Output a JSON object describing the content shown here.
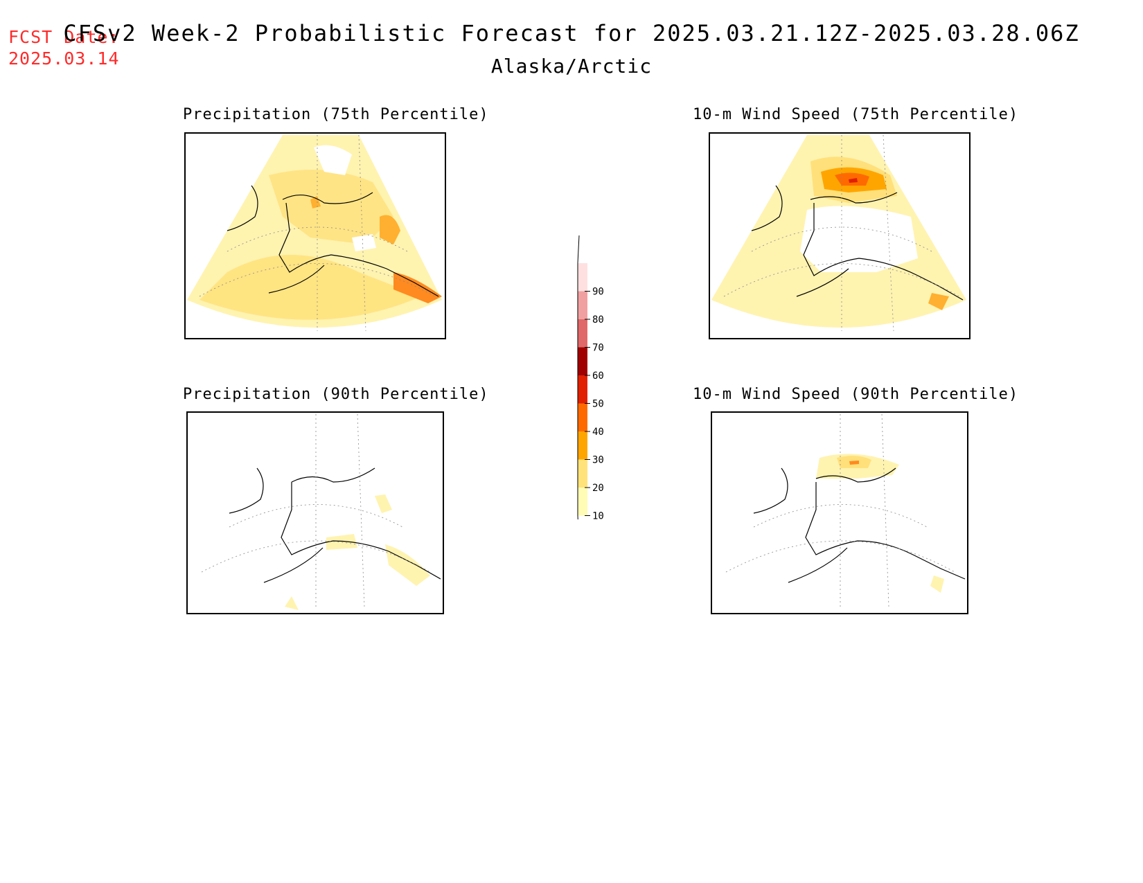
{
  "header": {
    "fcst_label": "FCST Date:",
    "fcst_date": "2025.03.14",
    "title": "CFSv2 Week-2 Probabilistic Forecast for 2025.03.21.12Z-2025.03.28.06Z",
    "subtitle": "Alaska/Arctic"
  },
  "panels": [
    {
      "id": "precip-75",
      "title": "Precipitation (75th Percentile)"
    },
    {
      "id": "wind-75",
      "title": "10-m Wind Speed (75th Percentile)"
    },
    {
      "id": "precip-90",
      "title": "Precipitation (90th Percentile)"
    },
    {
      "id": "wind-90",
      "title": "10-m Wind Speed (90th Percentile)"
    }
  ],
  "colorbar": {
    "levels": [
      "10",
      "20",
      "30",
      "40",
      "50",
      "60",
      "70",
      "80",
      "90"
    ],
    "colors": [
      "#fffcb5",
      "#ffe37a",
      "#ffa500",
      "#ff6a00",
      "#e02000",
      "#a00000",
      "#e06868",
      "#f0a0a0",
      "#ffe0e0"
    ]
  }
}
